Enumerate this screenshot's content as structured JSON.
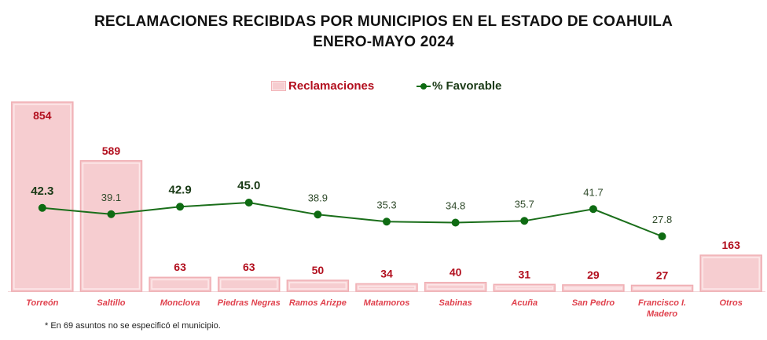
{
  "chart_data": {
    "type": "bar",
    "title": "RECLAMACIONES RECIBIDAS POR MUNICIPIOS EN EL ESTADO DE COAHUILA",
    "subtitle": "ENERO-MAYO 2024",
    "categories": [
      "Torreón",
      "Saltillo",
      "Monclova",
      "Piedras Negras",
      "Ramos Arizpe",
      "Matamoros",
      "Sabinas",
      "Acuña",
      "San Pedro",
      "Francisco I. Madero",
      "Otros"
    ],
    "category_lines": [
      [
        "Torreón"
      ],
      [
        "Saltillo"
      ],
      [
        "Monclova"
      ],
      [
        "Piedras Negras"
      ],
      [
        "Ramos Arizpe"
      ],
      [
        "Matamoros"
      ],
      [
        "Sabinas"
      ],
      [
        "Acuña"
      ],
      [
        "San Pedro"
      ],
      [
        "Francisco I.",
        "Madero"
      ],
      [
        "Otros"
      ]
    ],
    "series": [
      {
        "name": "Reclamaciones",
        "type": "bar",
        "values": [
          854,
          589,
          63,
          63,
          50,
          34,
          40,
          31,
          29,
          27,
          163
        ],
        "color": "#f6cdd0",
        "label_color": "#b20f1e"
      },
      {
        "name": "% Favorable",
        "type": "line",
        "values": [
          42.3,
          39.1,
          42.9,
          45.0,
          38.9,
          35.3,
          34.8,
          35.7,
          41.7,
          27.8,
          null
        ],
        "labels": [
          "42.3",
          "39.1",
          "42.9",
          "45.0",
          "38.9",
          "35.3",
          "34.8",
          "35.7",
          "41.7",
          "27.8",
          null
        ],
        "bold": [
          true,
          false,
          true,
          true,
          false,
          false,
          false,
          false,
          false,
          false,
          false
        ],
        "color": "#1a6e1a"
      }
    ],
    "xlabel": "",
    "ylabel": "",
    "grid": false,
    "legend": "top-center",
    "footnote": "* En 69 asuntos no se especificó el municipio."
  },
  "legend": {
    "bars_label": "Reclamaciones",
    "line_label": "% Favorable"
  }
}
